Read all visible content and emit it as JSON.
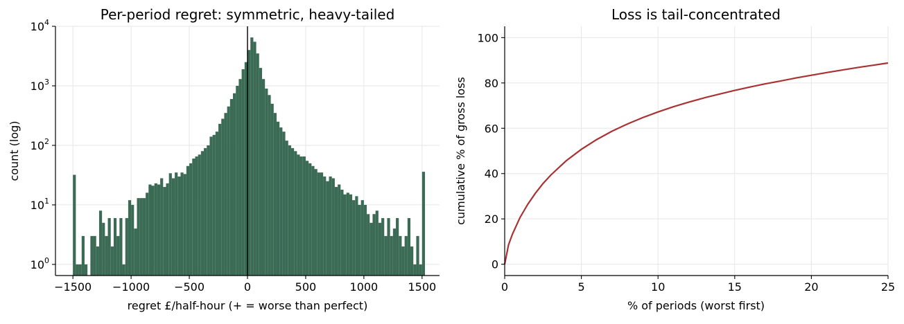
{
  "colors": {
    "bars": "#3b6b55",
    "curve": "#a83232",
    "zero_line": "#000000"
  },
  "chart_data": [
    {
      "type": "bar",
      "title": "Per-period regret: symmetric, heavy-tailed",
      "xlabel": "regret £/half-hour (+ = worse than perfect)",
      "ylabel": "count (log)",
      "xlim": [
        -1650,
        1650
      ],
      "ylim": [
        0.65,
        10000
      ],
      "yscale": "log",
      "grid": true,
      "xticks": [
        -1500,
        -1000,
        -500,
        0,
        500,
        1000,
        1500
      ],
      "xtick_labels": [
        "−1500",
        "−1000",
        "−500",
        "0",
        "500",
        "1000",
        "1500"
      ],
      "yticks": [
        1,
        10,
        100,
        1000,
        10000
      ],
      "ytick_labels": [
        {
          "base": "10",
          "exp": "0"
        },
        {
          "base": "10",
          "exp": "1"
        },
        {
          "base": "10",
          "exp": "2"
        },
        {
          "base": "10",
          "exp": "3"
        },
        {
          "base": "10",
          "exp": "4"
        }
      ],
      "bin_width": 25,
      "bin_start": -1500,
      "values": [
        32,
        1,
        1,
        3,
        1,
        0,
        3,
        3,
        2,
        8,
        5,
        3,
        6,
        2,
        6,
        3,
        6,
        1,
        6,
        12,
        10,
        4,
        13,
        13,
        13,
        16,
        22,
        21,
        23,
        22,
        28,
        20,
        23,
        34,
        28,
        35,
        30,
        35,
        33,
        45,
        50,
        60,
        65,
        70,
        80,
        90,
        100,
        140,
        150,
        170,
        230,
        280,
        350,
        450,
        600,
        750,
        1000,
        1300,
        1900,
        2500,
        4000,
        6500,
        5500,
        3500,
        2000,
        1300,
        900,
        700,
        500,
        350,
        250,
        200,
        170,
        120,
        100,
        90,
        80,
        70,
        65,
        65,
        55,
        50,
        45,
        40,
        35,
        35,
        30,
        25,
        30,
        28,
        20,
        22,
        18,
        15,
        16,
        15,
        12,
        14,
        10,
        12,
        10,
        7,
        5,
        7,
        8,
        5,
        6,
        3,
        6,
        3,
        4,
        6,
        3,
        2,
        3,
        6,
        2,
        1,
        3,
        1,
        36
      ],
      "vline_x": 0
    },
    {
      "type": "line",
      "title": "Loss is tail-concentrated",
      "xlabel": "% of periods (worst first)",
      "ylabel": "cumulative % of gross loss",
      "xlim": [
        0,
        25
      ],
      "ylim": [
        -5,
        105
      ],
      "grid": true,
      "xticks": [
        0,
        5,
        10,
        15,
        20,
        25
      ],
      "yticks": [
        0,
        20,
        40,
        60,
        80,
        100
      ],
      "x": [
        0,
        0.25,
        0.5,
        1,
        1.5,
        2,
        2.5,
        3,
        4,
        5,
        6,
        7,
        8,
        9,
        10,
        11,
        12,
        13,
        14,
        15,
        16,
        17,
        18,
        19,
        20,
        21,
        22,
        23,
        24,
        25
      ],
      "y": [
        0,
        8.5,
        13.2,
        20.6,
        26.4,
        31.3,
        35.6,
        39.3,
        45.6,
        50.7,
        55.0,
        58.7,
        61.9,
        64.7,
        67.2,
        69.5,
        71.5,
        73.4,
        75.1,
        76.7,
        78.2,
        79.6,
        80.9,
        82.2,
        83.4,
        84.6,
        85.7,
        86.8,
        87.8,
        88.8
      ]
    }
  ]
}
